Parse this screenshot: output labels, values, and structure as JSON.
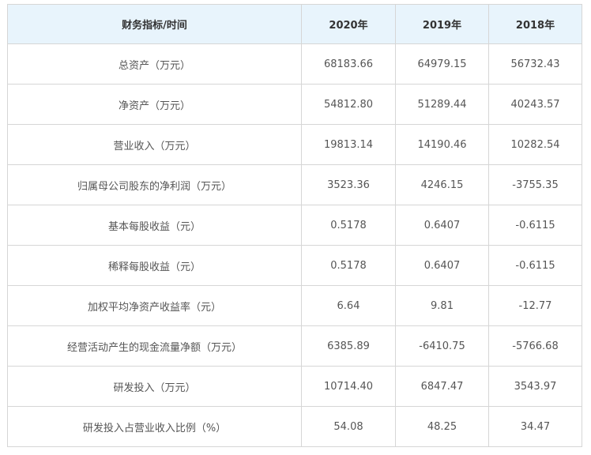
{
  "table": {
    "headers": [
      "财务指标/时间",
      "2020年",
      "2019年",
      "2018年"
    ],
    "rows": [
      [
        "总资产（万元）",
        "68183.66",
        "64979.15",
        "56732.43"
      ],
      [
        "净资产（万元）",
        "54812.80",
        "51289.44",
        "40243.57"
      ],
      [
        "营业收入（万元）",
        "19813.14",
        "14190.46",
        "10282.54"
      ],
      [
        "归属母公司股东的净利润（万元）",
        "3523.36",
        "4246.15",
        "-3755.35"
      ],
      [
        "基本每股收益（元）",
        "0.5178",
        "0.6407",
        "-0.6115"
      ],
      [
        "稀释每股收益（元）",
        "0.5178",
        "0.6407",
        "-0.6115"
      ],
      [
        "加权平均净资产收益率（元）",
        "6.64",
        "9.81",
        "-12.77"
      ],
      [
        "经营活动产生的现金流量净额（万元）",
        "6385.89",
        "-6410.75",
        "-5766.68"
      ],
      [
        "研发投入（万元）",
        "10714.40",
        "6847.47",
        "3543.97"
      ],
      [
        "研发投入占营业收入比例（%）",
        "54.08",
        "48.25",
        "34.47"
      ]
    ]
  },
  "colors": {
    "header_bg": "#e8f4fc",
    "border": "#d6d6d6",
    "text": "#555555"
  }
}
